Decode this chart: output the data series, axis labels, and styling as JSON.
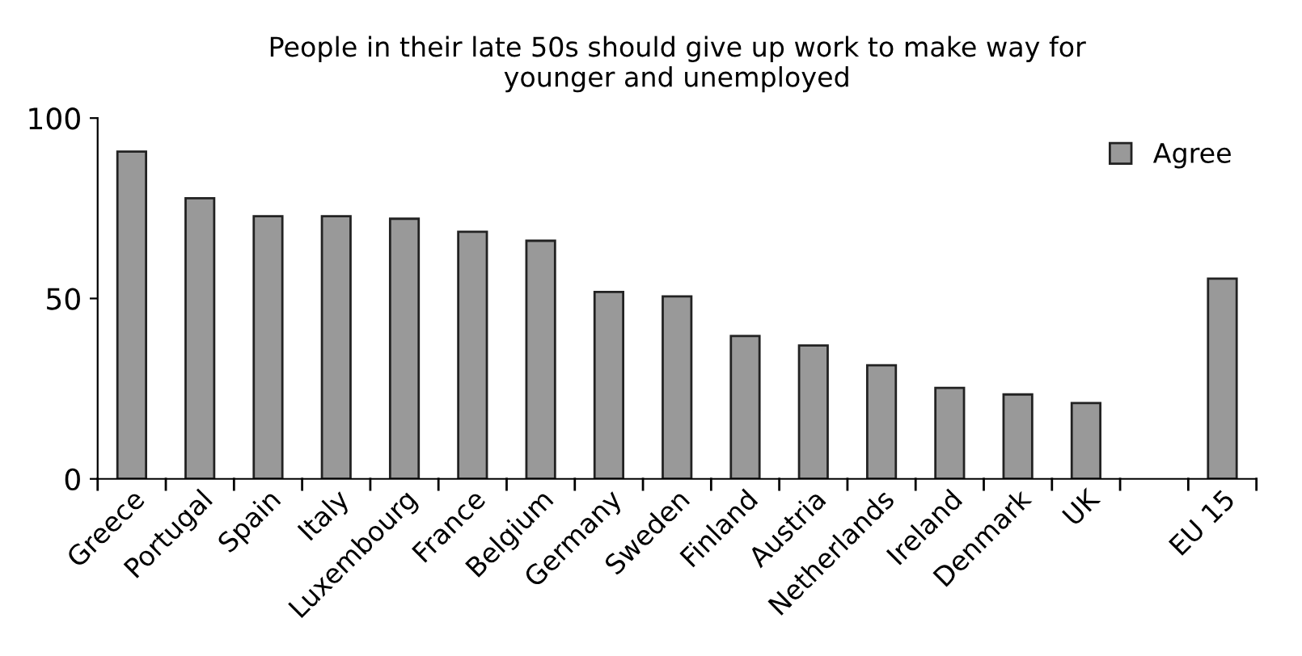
{
  "chart_data": {
    "type": "bar",
    "title": "People in their late 50s should give up work to make way for\nyounger and unemployed",
    "categories": [
      "Greece",
      "Portugal",
      "Spain",
      "Italy",
      "Luxembourg",
      "France",
      "Belgium",
      "Germany",
      "Sweden",
      "Finland",
      "Austria",
      "Netherlands",
      "Ireland",
      "Denmark",
      "UK",
      null,
      "EU 15"
    ],
    "series": [
      {
        "name": "Agree",
        "color": "#999999",
        "values": [
          90.7,
          77.8,
          72.8,
          72.8,
          72.1,
          68.5,
          66,
          51.8,
          50.6,
          39.6,
          37,
          31.5,
          25.2,
          23.4,
          21,
          null,
          55.5
        ]
      }
    ],
    "ylim": [
      0,
      100
    ],
    "yticks": [
      0,
      50,
      100
    ],
    "grid": false,
    "legend": "top right"
  }
}
